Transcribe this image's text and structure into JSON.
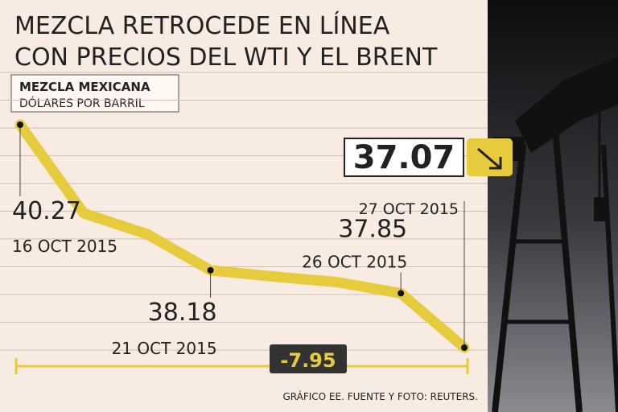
{
  "chart_data": {
    "type": "line",
    "title": [
      "MEZCLA RETROCEDE EN LÍNEA",
      "CON PRECIOS DEL WTI Y EL BRENT"
    ],
    "series_label": "MEZCLA MEXICANA",
    "unit_label": "DÓLARES POR BARRIL",
    "categories": [
      "16 OCT 2015",
      null,
      null,
      "21 OCT 2015",
      null,
      null,
      "26 OCT 2015",
      "27 OCT 2015"
    ],
    "values": [
      40.27,
      39.0,
      38.7,
      38.18,
      38.09,
      38.01,
      37.85,
      37.07
    ],
    "color": "#e6cc3c",
    "change_label": "-7.95",
    "source": "GRÁFICO EE. FUENTE Y FOTO: REUTERS."
  }
}
